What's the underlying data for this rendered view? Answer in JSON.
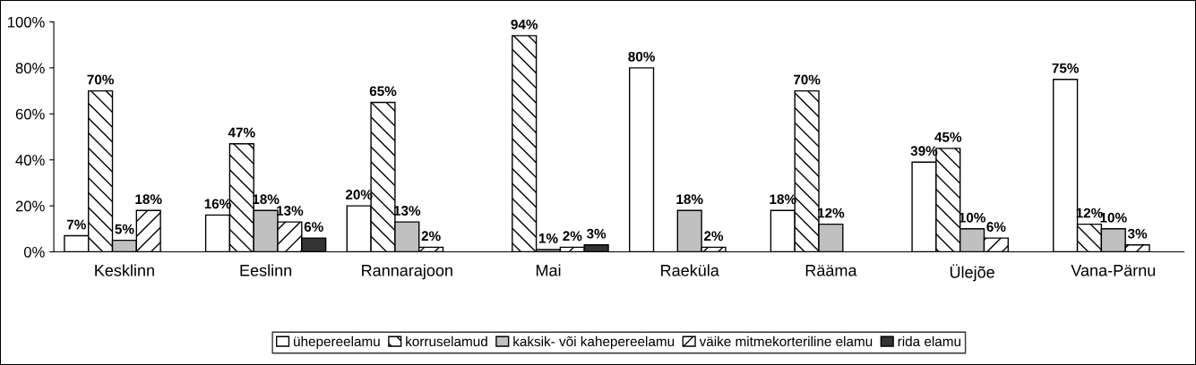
{
  "chart_data": {
    "type": "bar",
    "categories": [
      "Kesklinn",
      "Eeslinn",
      "Rannarajoon",
      "Mai",
      "Raeküla",
      "Rääma",
      "Ülejõe",
      "Vana-Pärnu"
    ],
    "series": [
      {
        "name": "ühepereelamu",
        "color": "#ffffff",
        "values": [
          7,
          16,
          20,
          null,
          80,
          18,
          39,
          75
        ],
        "value_labels": [
          "7%",
          "16%",
          "20%",
          null,
          "80%",
          "18%",
          "39%",
          "75%"
        ]
      },
      {
        "name": "korruselamud",
        "color": "#ffffff",
        "values": [
          70,
          47,
          65,
          94,
          null,
          70,
          45,
          12
        ],
        "value_labels": [
          "70%",
          "47%",
          "65%",
          "94%",
          null,
          "70%",
          "45%",
          "12%"
        ]
      },
      {
        "name": "kaksik- või kahepereelamu",
        "color": "#c0c0c0",
        "values": [
          5,
          18,
          13,
          1,
          18,
          12,
          10,
          10
        ],
        "value_labels": [
          "5%",
          "18%",
          "13%",
          "1%",
          "18%",
          "12%",
          "10%",
          "10%"
        ]
      },
      {
        "name": "väike mitmekorteriline elamu",
        "color": "#ffffff",
        "values": [
          18,
          13,
          2,
          2,
          2,
          null,
          6,
          3
        ],
        "value_labels": [
          "18%",
          "13%",
          "2%",
          "2%",
          "2%",
          null,
          "6%",
          "3%"
        ]
      },
      {
        "name": "rida elamu",
        "color": "#333333",
        "values": [
          null,
          6,
          null,
          3,
          null,
          null,
          null,
          null
        ],
        "value_labels": [
          null,
          "6%",
          null,
          "3%",
          null,
          null,
          null,
          null
        ]
      }
    ],
    "ylim": [
      0,
      100
    ],
    "yticks": [
      {
        "value": 0,
        "label": "0%"
      },
      {
        "value": 20,
        "label": "20%"
      },
      {
        "value": 40,
        "label": "40%"
      },
      {
        "value": 60,
        "label": "60%"
      },
      {
        "value": 80,
        "label": "80%"
      },
      {
        "value": 100,
        "label": "100%"
      }
    ],
    "grid": false,
    "legend": "bottom"
  }
}
